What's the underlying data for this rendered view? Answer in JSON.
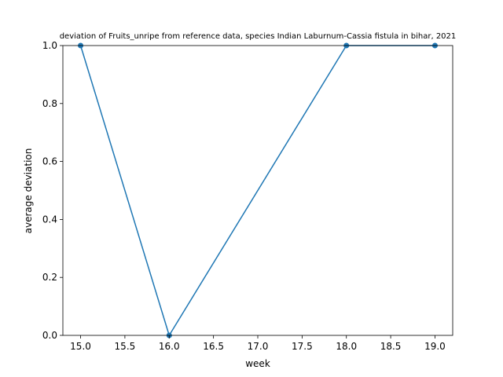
{
  "chart_data": {
    "type": "line",
    "title": "deviation of Fruits_unripe from reference data, species Indian Laburnum-Cassia fistula in bihar, 2021",
    "xlabel": "week",
    "ylabel": "average deviation",
    "x": [
      15.0,
      16.0,
      18.0,
      19.0
    ],
    "series": [
      {
        "values": [
          1.0,
          0.0,
          1.0,
          1.0
        ]
      }
    ],
    "xlim": [
      14.8,
      19.2
    ],
    "ylim": [
      0.0,
      1.0
    ],
    "xticks": [
      "15.0",
      "15.5",
      "16.0",
      "16.5",
      "17.0",
      "17.5",
      "18.0",
      "18.5",
      "19.0"
    ],
    "yticks": [
      "0.0",
      "0.2",
      "0.4",
      "0.6",
      "0.8",
      "1.0"
    ],
    "grid": false,
    "line_color": "#1f77b4"
  }
}
